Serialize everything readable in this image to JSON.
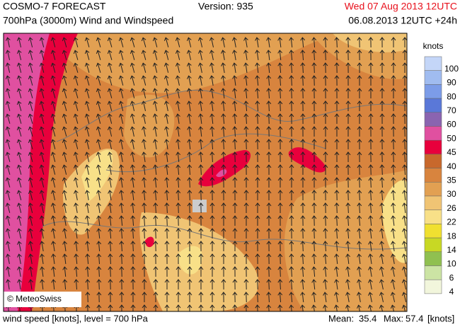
{
  "header": {
    "title": "COSMO-7 FORECAST",
    "subtitle": "700hPa (3000m) Wind and Windspeed",
    "version": "Version: 935",
    "valid_time": "Wed 07 Aug 2013 12UTC",
    "run_time": "06.08.2013 12UTC +24h"
  },
  "map": {
    "credit": "© MeteoSwiss"
  },
  "legend": {
    "unit": "knots",
    "labels": [
      100,
      90,
      80,
      70,
      60,
      50,
      45,
      40,
      35,
      30,
      26,
      22,
      18,
      14,
      10,
      6,
      4
    ],
    "colors": [
      "#c4d6f8",
      "#a0bcf0",
      "#7c9ce8",
      "#5a78d8",
      "#8a64b0",
      "#e050a0",
      "#e8003c",
      "#c8682c",
      "#d8843e",
      "#e2a052",
      "#f0c474",
      "#f8e088",
      "#f0e030",
      "#c8d824",
      "#90c050",
      "#cce4a4",
      "#f2f6dc"
    ]
  },
  "footer": {
    "description": "wind speed [knots], level = 700 hPa",
    "mean_label": "Mean:",
    "mean": 35.4,
    "max_label": "Max:",
    "max": 57.4,
    "unit": "[knots]"
  }
}
